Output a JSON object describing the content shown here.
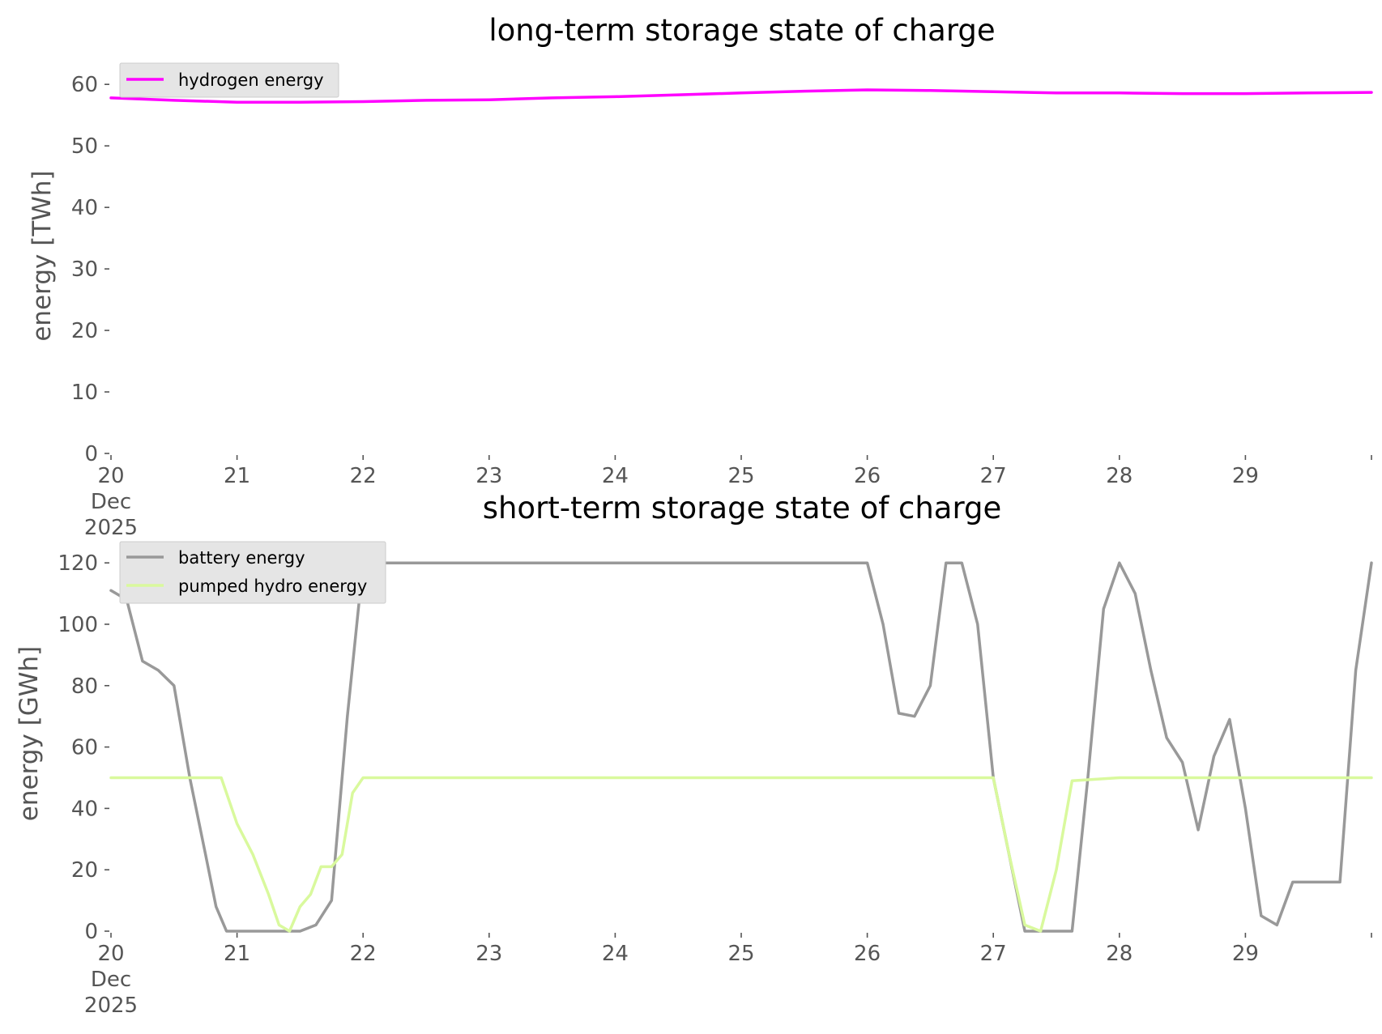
{
  "chart_data": [
    {
      "type": "line",
      "title": "long-term storage state of charge",
      "xlabel": "",
      "ylabel": "energy [TWh]",
      "ylim": [
        0,
        62
      ],
      "xlim": [
        "2025-12-20 00:00",
        "2025-12-30 00:00"
      ],
      "yticks": [
        "0",
        "10",
        "20",
        "30",
        "40",
        "50",
        "60"
      ],
      "xticks": [
        [
          "20",
          "Dec",
          "2025"
        ],
        [
          "21"
        ],
        [
          "22"
        ],
        [
          "23"
        ],
        [
          "24"
        ],
        [
          "25"
        ],
        [
          "26"
        ],
        [
          "27"
        ],
        [
          "28"
        ],
        [
          "29"
        ]
      ],
      "grid": false,
      "legend_placement": "upper-left",
      "x": [
        "2025-12-20 00:00",
        "2025-12-20 12:00",
        "2025-12-21 00:00",
        "2025-12-21 12:00",
        "2025-12-22 00:00",
        "2025-12-22 12:00",
        "2025-12-23 00:00",
        "2025-12-23 12:00",
        "2025-12-24 00:00",
        "2025-12-24 12:00",
        "2025-12-25 00:00",
        "2025-12-25 12:00",
        "2025-12-26 00:00",
        "2025-12-26 12:00",
        "2025-12-27 00:00",
        "2025-12-27 12:00",
        "2025-12-28 00:00",
        "2025-12-28 12:00",
        "2025-12-29 00:00",
        "2025-12-29 12:00",
        "2025-12-30 00:00"
      ],
      "series": [
        {
          "name": "hydrogen energy",
          "color": "#ff00ff",
          "values": [
            57.8,
            57.4,
            57.1,
            57.1,
            57.2,
            57.4,
            57.5,
            57.8,
            58.0,
            58.3,
            58.6,
            58.9,
            59.1,
            59.0,
            58.8,
            58.6,
            58.6,
            58.5,
            58.5,
            58.6,
            58.7
          ]
        }
      ]
    },
    {
      "type": "line",
      "title": "short-term storage state of charge",
      "xlabel": "",
      "ylabel": "energy [GWh]",
      "ylim": [
        0,
        124
      ],
      "xlim": [
        "2025-12-20 00:00",
        "2025-12-30 00:00"
      ],
      "yticks": [
        "0",
        "20",
        "40",
        "60",
        "80",
        "100",
        "120"
      ],
      "xticks": [
        [
          "20",
          "Dec",
          "2025"
        ],
        [
          "21"
        ],
        [
          "22"
        ],
        [
          "23"
        ],
        [
          "24"
        ],
        [
          "25"
        ],
        [
          "26"
        ],
        [
          "27"
        ],
        [
          "28"
        ],
        [
          "29"
        ]
      ],
      "grid": false,
      "legend_placement": "upper-left",
      "series": [
        {
          "name": "battery energy",
          "color": "#999999",
          "x": [
            "2025-12-20 00:00",
            "2025-12-20 03:00",
            "2025-12-20 06:00",
            "2025-12-20 09:00",
            "2025-12-20 12:00",
            "2025-12-20 15:00",
            "2025-12-20 18:00",
            "2025-12-20 20:00",
            "2025-12-20 22:00",
            "2025-12-21 00:00",
            "2025-12-21 03:00",
            "2025-12-21 06:00",
            "2025-12-21 09:00",
            "2025-12-21 12:00",
            "2025-12-21 15:00",
            "2025-12-21 18:00",
            "2025-12-21 21:00",
            "2025-12-22 00:00",
            "2025-12-25 21:00",
            "2025-12-26 00:00",
            "2025-12-26 03:00",
            "2025-12-26 06:00",
            "2025-12-26 09:00",
            "2025-12-26 12:00",
            "2025-12-26 15:00",
            "2025-12-26 18:00",
            "2025-12-26 21:00",
            "2025-12-27 00:00",
            "2025-12-27 06:00",
            "2025-12-27 09:00",
            "2025-12-27 12:00",
            "2025-12-27 15:00",
            "2025-12-27 18:00",
            "2025-12-27 21:00",
            "2025-12-28 00:00",
            "2025-12-28 03:00",
            "2025-12-28 06:00",
            "2025-12-28 09:00",
            "2025-12-28 12:00",
            "2025-12-28 15:00",
            "2025-12-28 18:00",
            "2025-12-28 21:00",
            "2025-12-29 00:00",
            "2025-12-29 03:00",
            "2025-12-29 06:00",
            "2025-12-29 09:00",
            "2025-12-29 12:00",
            "2025-12-29 15:00",
            "2025-12-29 18:00",
            "2025-12-29 21:00",
            "2025-12-30 00:00"
          ],
          "values": [
            111,
            108,
            88,
            85,
            80,
            50,
            25,
            8,
            0,
            0,
            0,
            0,
            0,
            0,
            2,
            10,
            70,
            120,
            120,
            120,
            100,
            71,
            70,
            80,
            120,
            120,
            100,
            50,
            0,
            0,
            0,
            0,
            50,
            105,
            120,
            110,
            85,
            63,
            55,
            33,
            57,
            69,
            40,
            5,
            2,
            16,
            16,
            16,
            16,
            85,
            120
          ]
        },
        {
          "name": "pumped hydro energy",
          "color": "#d9f99d",
          "x": [
            "2025-12-20 00:00",
            "2025-12-20 21:00",
            "2025-12-21 00:00",
            "2025-12-21 03:00",
            "2025-12-21 06:00",
            "2025-12-21 08:00",
            "2025-12-21 10:00",
            "2025-12-21 12:00",
            "2025-12-21 14:00",
            "2025-12-21 16:00",
            "2025-12-21 18:00",
            "2025-12-21 20:00",
            "2025-12-21 22:00",
            "2025-12-22 00:00",
            "2025-12-26 21:00",
            "2025-12-27 00:00",
            "2025-12-27 03:00",
            "2025-12-27 06:00",
            "2025-12-27 09:00",
            "2025-12-27 12:00",
            "2025-12-27 15:00",
            "2025-12-28 00:00",
            "2025-12-30 00:00"
          ],
          "values": [
            50,
            50,
            35,
            25,
            12,
            2,
            0,
            8,
            12,
            21,
            21,
            25,
            45,
            50,
            50,
            50,
            25,
            2,
            0,
            20,
            49,
            50,
            50
          ]
        }
      ]
    }
  ]
}
